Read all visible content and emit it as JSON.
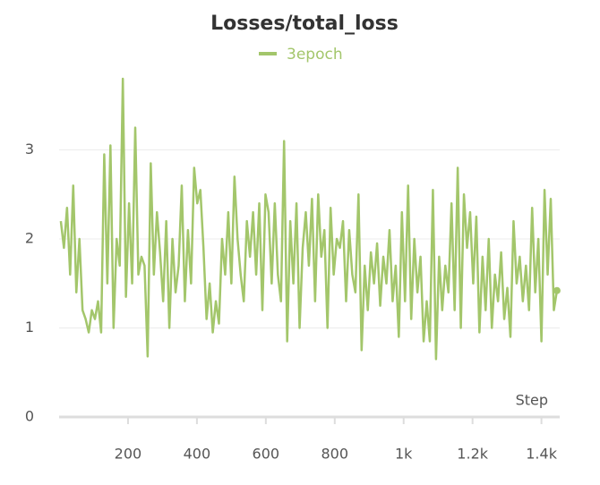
{
  "chart_data": {
    "type": "line",
    "title": "Losses/total_loss",
    "x_label": "Step",
    "x": [
      5,
      14,
      23,
      32,
      41,
      50,
      59,
      68,
      77,
      86,
      95,
      104,
      113,
      122,
      131,
      140,
      149,
      158,
      167,
      176,
      185,
      194,
      203,
      212,
      221,
      230,
      239,
      248,
      257,
      266,
      275,
      284,
      293,
      302,
      311,
      320,
      329,
      338,
      347,
      356,
      365,
      374,
      383,
      392,
      401,
      410,
      419,
      428,
      437,
      446,
      455,
      464,
      473,
      482,
      491,
      500,
      509,
      518,
      527,
      536,
      545,
      554,
      563,
      572,
      581,
      590,
      599,
      608,
      617,
      626,
      635,
      644,
      653,
      662,
      671,
      680,
      689,
      698,
      707,
      716,
      725,
      734,
      743,
      752,
      761,
      770,
      779,
      788,
      797,
      806,
      815,
      824,
      833,
      842,
      851,
      860,
      869,
      878,
      887,
      896,
      905,
      914,
      923,
      932,
      941,
      950,
      959,
      968,
      977,
      986,
      995,
      1004,
      1013,
      1022,
      1031,
      1040,
      1049,
      1058,
      1067,
      1076,
      1085,
      1094,
      1103,
      1112,
      1121,
      1130,
      1139,
      1148,
      1157,
      1166,
      1175,
      1184,
      1193,
      1202,
      1211,
      1220,
      1229,
      1238,
      1247,
      1256,
      1265,
      1274,
      1283,
      1292,
      1301,
      1310,
      1319,
      1328,
      1337,
      1346,
      1355,
      1364,
      1373,
      1382,
      1391,
      1400,
      1409,
      1418,
      1427,
      1436,
      1445
    ],
    "series": [
      {
        "name": "3epoch",
        "color": "#a3c66b",
        "values": [
          2.2,
          1.9,
          2.35,
          1.6,
          2.6,
          1.4,
          2.0,
          1.2,
          1.1,
          0.95,
          1.2,
          1.1,
          1.3,
          0.95,
          2.95,
          1.5,
          3.05,
          1.0,
          2.0,
          1.7,
          3.8,
          1.35,
          2.4,
          1.5,
          3.25,
          1.6,
          1.8,
          1.7,
          0.68,
          2.85,
          1.6,
          2.3,
          1.85,
          1.3,
          2.2,
          1.0,
          2.0,
          1.4,
          1.7,
          2.6,
          1.3,
          2.1,
          1.5,
          2.8,
          2.4,
          2.55,
          1.9,
          1.1,
          1.5,
          0.95,
          1.3,
          1.05,
          2.0,
          1.6,
          2.3,
          1.5,
          2.7,
          2.0,
          1.6,
          1.3,
          2.2,
          1.8,
          2.3,
          1.6,
          2.4,
          1.2,
          2.5,
          2.3,
          1.5,
          2.4,
          1.6,
          1.3,
          3.1,
          0.85,
          2.2,
          1.5,
          2.4,
          1.0,
          1.9,
          2.3,
          1.7,
          2.45,
          1.3,
          2.5,
          1.8,
          2.1,
          1.0,
          2.35,
          1.6,
          2.0,
          1.9,
          2.2,
          1.3,
          2.1,
          1.6,
          1.4,
          2.5,
          0.75,
          1.7,
          1.2,
          1.85,
          1.5,
          1.95,
          1.25,
          1.8,
          1.5,
          2.1,
          1.3,
          1.7,
          0.9,
          2.3,
          1.3,
          2.6,
          1.1,
          2.0,
          1.4,
          1.8,
          0.85,
          1.3,
          0.85,
          2.55,
          0.65,
          1.8,
          1.2,
          1.7,
          1.4,
          2.4,
          1.2,
          2.8,
          1.0,
          2.5,
          1.9,
          2.3,
          1.5,
          2.25,
          0.95,
          1.8,
          1.2,
          2.0,
          1.0,
          1.6,
          1.3,
          1.85,
          1.1,
          1.45,
          0.9,
          2.2,
          1.5,
          1.8,
          1.3,
          1.7,
          1.2,
          2.35,
          1.4,
          2.0,
          0.85,
          2.55,
          1.6,
          2.45,
          1.2,
          1.42
        ]
      }
    ],
    "xlim": [
      0,
      1453
    ],
    "ylim": [
      0,
      3.9
    ],
    "xticks": [
      200,
      400,
      600,
      800,
      {
        "value": 1000,
        "label": "1k"
      },
      {
        "value": 1200,
        "label": "1.2k"
      },
      {
        "value": 1400,
        "label": "1.4k"
      }
    ],
    "yticks": [
      0,
      1,
      2,
      3
    ],
    "grid": true,
    "legend": "top"
  }
}
